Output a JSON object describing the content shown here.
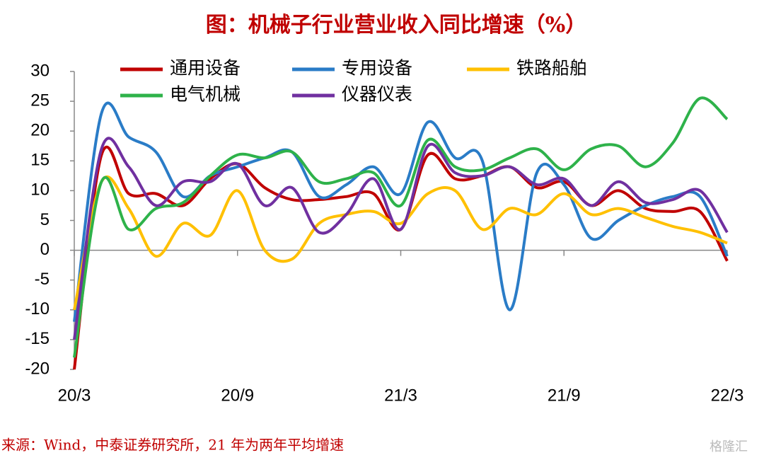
{
  "chart_data": {
    "type": "line",
    "title": "图：机械子行业营业收入同比增速（%）",
    "source": "来源：Wind，中泰证券研究所，21 年为两年平均增速",
    "watermark": "格隆汇",
    "categories": [
      "20/3",
      null,
      null,
      null,
      null,
      null,
      "20/9",
      null,
      null,
      null,
      null,
      null,
      "21/3",
      null,
      null,
      null,
      null,
      null,
      "21/9",
      null,
      null,
      null,
      null,
      null,
      "22/3"
    ],
    "ylim": [
      -20,
      30
    ],
    "yticks": [
      30,
      25,
      20,
      15,
      10,
      5,
      0,
      -5,
      -10,
      -15,
      -20
    ],
    "grid": false,
    "series": [
      {
        "name": "通用设备",
        "color": "#c00000",
        "values": [
          -20,
          16,
          9.5,
          9.5,
          7.5,
          12,
          14.5,
          10.5,
          8.5,
          8.5,
          9,
          9.5,
          3.5,
          16,
          12,
          12.5,
          14,
          10.5,
          11.5,
          7.5,
          10,
          7,
          6.5,
          6.5,
          -1.8
        ]
      },
      {
        "name": "专用设备",
        "color": "#2a7cc7",
        "values": [
          -12,
          23,
          19,
          16.5,
          9,
          12.5,
          14,
          15.5,
          16.5,
          9,
          11,
          14,
          9.5,
          21.5,
          15.5,
          15,
          -10,
          13,
          11,
          2,
          5,
          7.5,
          9,
          9,
          -1
        ]
      },
      {
        "name": "铁路船舶",
        "color": "#ffc000",
        "values": [
          -10,
          11.5,
          7,
          -1,
          4.5,
          2.5,
          10,
          0,
          -1.5,
          4.5,
          6,
          6.5,
          4.5,
          9.5,
          10,
          3.5,
          7,
          6,
          9.5,
          6,
          7,
          5.5,
          4,
          3,
          1.2
        ]
      },
      {
        "name": "电气机械",
        "color": "#2eb24a",
        "values": [
          -18,
          11.5,
          3.5,
          7,
          8,
          12.5,
          16,
          15.5,
          16.5,
          11.5,
          12,
          13,
          7.5,
          18.5,
          14,
          13.5,
          15.5,
          17,
          13.5,
          17,
          17.5,
          14,
          18,
          25.5,
          22
        ]
      },
      {
        "name": "仪器仪表",
        "color": "#7030a0",
        "values": [
          -15,
          17,
          14,
          7.5,
          11.5,
          11.5,
          14.5,
          7.5,
          10.5,
          3,
          6,
          12,
          3.5,
          17.5,
          13,
          12.5,
          14,
          11,
          12,
          7.5,
          11.5,
          8,
          8.5,
          10,
          3
        ]
      }
    ]
  }
}
